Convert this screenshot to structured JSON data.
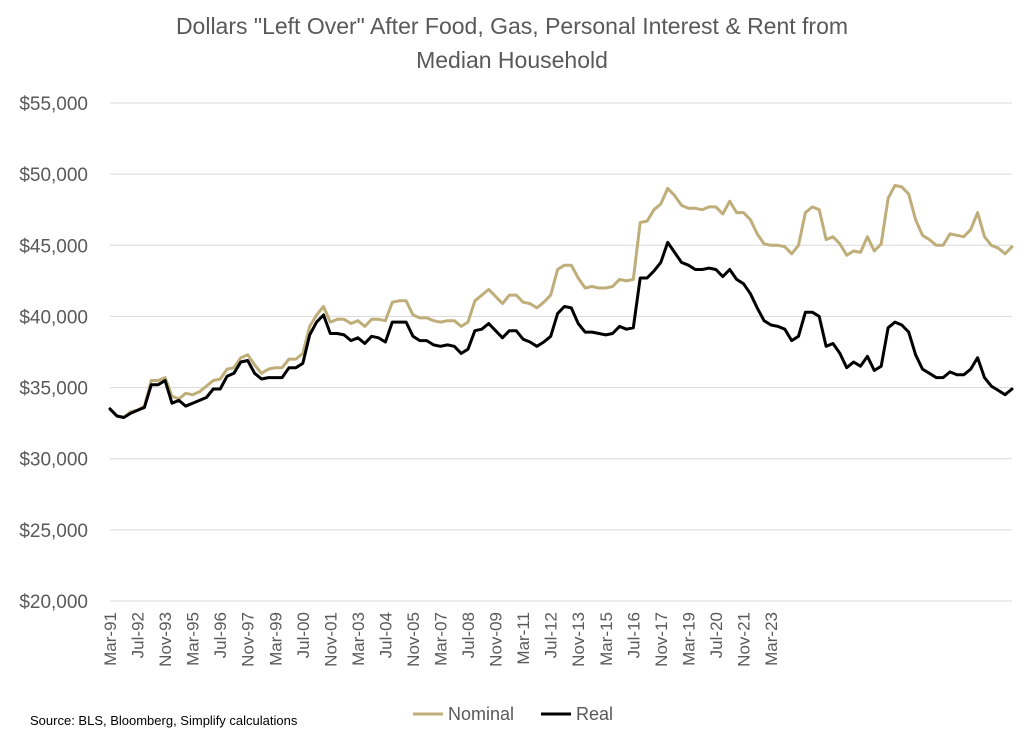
{
  "chart_data": {
    "type": "line",
    "title": [
      "Dollars \"Left Over\" After Food, Gas, Personal Interest & Rent from",
      "Median Household"
    ],
    "ylim": [
      20000,
      55000
    ],
    "yticks": [
      20000,
      25000,
      30000,
      35000,
      40000,
      45000,
      50000,
      55000
    ],
    "ytick_labels": [
      "$20,000",
      "$25,000",
      "$30,000",
      "$35,000",
      "$40,000",
      "$45,000",
      "$50,000",
      "$55,000"
    ],
    "x_tick_labels": [
      "Mar-91",
      "Jul-92",
      "Nov-93",
      "Mar-95",
      "Jul-96",
      "Nov-97",
      "Mar-99",
      "Jul-00",
      "Nov-01",
      "Mar-03",
      "Jul-04",
      "Nov-05",
      "Mar-07",
      "Jul-08",
      "Nov-09",
      "Mar-11",
      "Jul-12",
      "Nov-13",
      "Mar-15",
      "Jul-16",
      "Nov-17",
      "Mar-19",
      "Jul-20",
      "Nov-21",
      "Mar-23"
    ],
    "x_period_months": 4,
    "series": [
      {
        "name": "Nominal",
        "color": "#BFAE7A",
        "values": [
          33500,
          33000,
          32900,
          33300,
          33400,
          33700,
          35500,
          35500,
          35700,
          34400,
          34200,
          34600,
          34500,
          34700,
          35100,
          35500,
          35600,
          36300,
          36400,
          37100,
          37300,
          36600,
          36000,
          36300,
          36400,
          36400,
          37000,
          37000,
          37400,
          39300,
          40100,
          40700,
          39600,
          39800,
          39800,
          39500,
          39700,
          39300,
          39800,
          39800,
          39700,
          41000,
          41100,
          41100,
          40100,
          39900,
          39900,
          39700,
          39600,
          39700,
          39700,
          39300,
          39600,
          41100,
          41500,
          41900,
          41400,
          40900,
          41500,
          41500,
          41000,
          40900,
          40600,
          41000,
          41500,
          43300,
          43600,
          43600,
          42700,
          42000,
          42100,
          42000,
          42000,
          42100,
          42600,
          42500,
          42600,
          46600,
          46700,
          47500,
          47900,
          49000,
          48500,
          47800,
          47600,
          47600,
          47500,
          47700,
          47700,
          47200,
          48100,
          47300,
          47300,
          46800,
          45800,
          45100,
          45000,
          45000,
          44900,
          44400,
          45000,
          47300,
          47700,
          47500,
          45400,
          45600,
          45100,
          44300,
          44600,
          44500,
          45600,
          44600,
          45100,
          48300,
          49200,
          49100,
          48600,
          46800,
          45700,
          45400,
          45000,
          45000,
          45800,
          45700,
          45600,
          46100,
          47300,
          45600,
          45000,
          44800,
          44400,
          44900
        ]
      },
      {
        "name": "Real",
        "color": "#000000",
        "values": [
          33500,
          33000,
          32900,
          33200,
          33400,
          33600,
          35200,
          35200,
          35500,
          33900,
          34100,
          33700,
          33900,
          34100,
          34300,
          34900,
          34900,
          35800,
          36000,
          36800,
          36900,
          36000,
          35600,
          35700,
          35700,
          35700,
          36400,
          36400,
          36700,
          38700,
          39600,
          40100,
          38800,
          38800,
          38700,
          38300,
          38500,
          38100,
          38600,
          38500,
          38200,
          39600,
          39600,
          39600,
          38600,
          38300,
          38300,
          38000,
          37900,
          38000,
          37900,
          37400,
          37700,
          39000,
          39100,
          39500,
          39000,
          38500,
          39000,
          39000,
          38400,
          38200,
          37900,
          38200,
          38600,
          40200,
          40700,
          40600,
          39500,
          38900,
          38900,
          38800,
          38700,
          38800,
          39300,
          39100,
          39200,
          42700,
          42700,
          43200,
          43800,
          45200,
          44500,
          43800,
          43600,
          43300,
          43300,
          43400,
          43300,
          42800,
          43300,
          42600,
          42300,
          41600,
          40600,
          39700,
          39400,
          39300,
          39100,
          38300,
          38600,
          40300,
          40300,
          40000,
          37900,
          38100,
          37400,
          36400,
          36800,
          36500,
          37200,
          36200,
          36500,
          39200,
          39600,
          39400,
          38900,
          37300,
          36300,
          36000,
          35700,
          35700,
          36100,
          35900,
          35900,
          36300,
          37100,
          35700,
          35100,
          34800,
          34500,
          34900
        ]
      }
    ],
    "legend": {
      "position": "bottom",
      "items": [
        "Nominal",
        "Real"
      ]
    }
  },
  "footer": {
    "source": "Source: BLS, Bloomberg, Simplify calculations"
  }
}
